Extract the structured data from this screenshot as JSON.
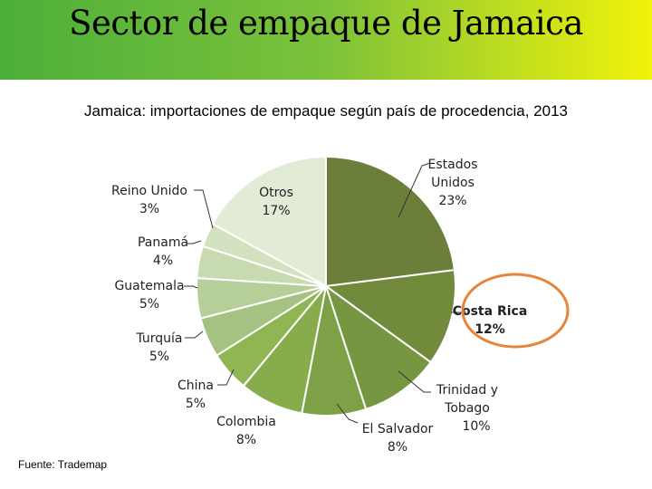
{
  "banner": {
    "title": "Sector de empaque de Jamaica"
  },
  "chart_data": {
    "type": "pie",
    "title": "Jamaica: importaciones de empaque según país de procedencia, 2013",
    "slices": [
      {
        "label": "Estados Unidos",
        "value": 23,
        "display": "23%",
        "color": "#6b7f3a"
      },
      {
        "label": "Costa Rica",
        "value": 12,
        "display": "12%",
        "color": "#718a3c"
      },
      {
        "label": "Trinidad y Tobago",
        "value": 10,
        "display": "10%",
        "color": "#779641"
      },
      {
        "label": "El Salvador",
        "value": 8,
        "display": "8%",
        "color": "#7ea147"
      },
      {
        "label": "Colombia",
        "value": 8,
        "display": "8%",
        "color": "#86ac4c"
      },
      {
        "label": "China",
        "value": 5,
        "display": "5%",
        "color": "#8fb653"
      },
      {
        "label": "Turquía",
        "value": 5,
        "display": "5%",
        "color": "#a5c283"
      },
      {
        "label": "Guatemala",
        "value": 5,
        "display": "5%",
        "color": "#b6cf98"
      },
      {
        "label": "Panamá",
        "value": 4,
        "display": "4%",
        "color": "#c8dab0"
      },
      {
        "label": "Reino Unido",
        "value": 3,
        "display": "3%",
        "color": "#d3e2be"
      },
      {
        "label": "Otros",
        "value": 17,
        "display": "17%",
        "color": "#e2ebd6"
      }
    ],
    "highlight": {
      "label": "Costa Rica",
      "ring_color": "#e8843a"
    }
  },
  "labels": {
    "estados_unidos": [
      "Estados",
      "Unidos",
      "23%"
    ],
    "costa_rica": [
      "Costa Rica",
      "12%"
    ],
    "trinidad": [
      "Trinidad y",
      "Tobago",
      "10%"
    ],
    "el_salvador": [
      "El Salvador",
      "8%"
    ],
    "colombia": [
      "Colombia",
      "8%"
    ],
    "china": [
      "China",
      "5%"
    ],
    "turquia": [
      "Turquía",
      "5%"
    ],
    "guatemala": [
      "Guatemala",
      "5%"
    ],
    "panama": [
      "Panamá",
      "4%"
    ],
    "reino_unido": [
      "Reino Unido",
      "3%"
    ],
    "otros": [
      "Otros",
      "17%"
    ]
  },
  "source": "Fuente: Trademap"
}
